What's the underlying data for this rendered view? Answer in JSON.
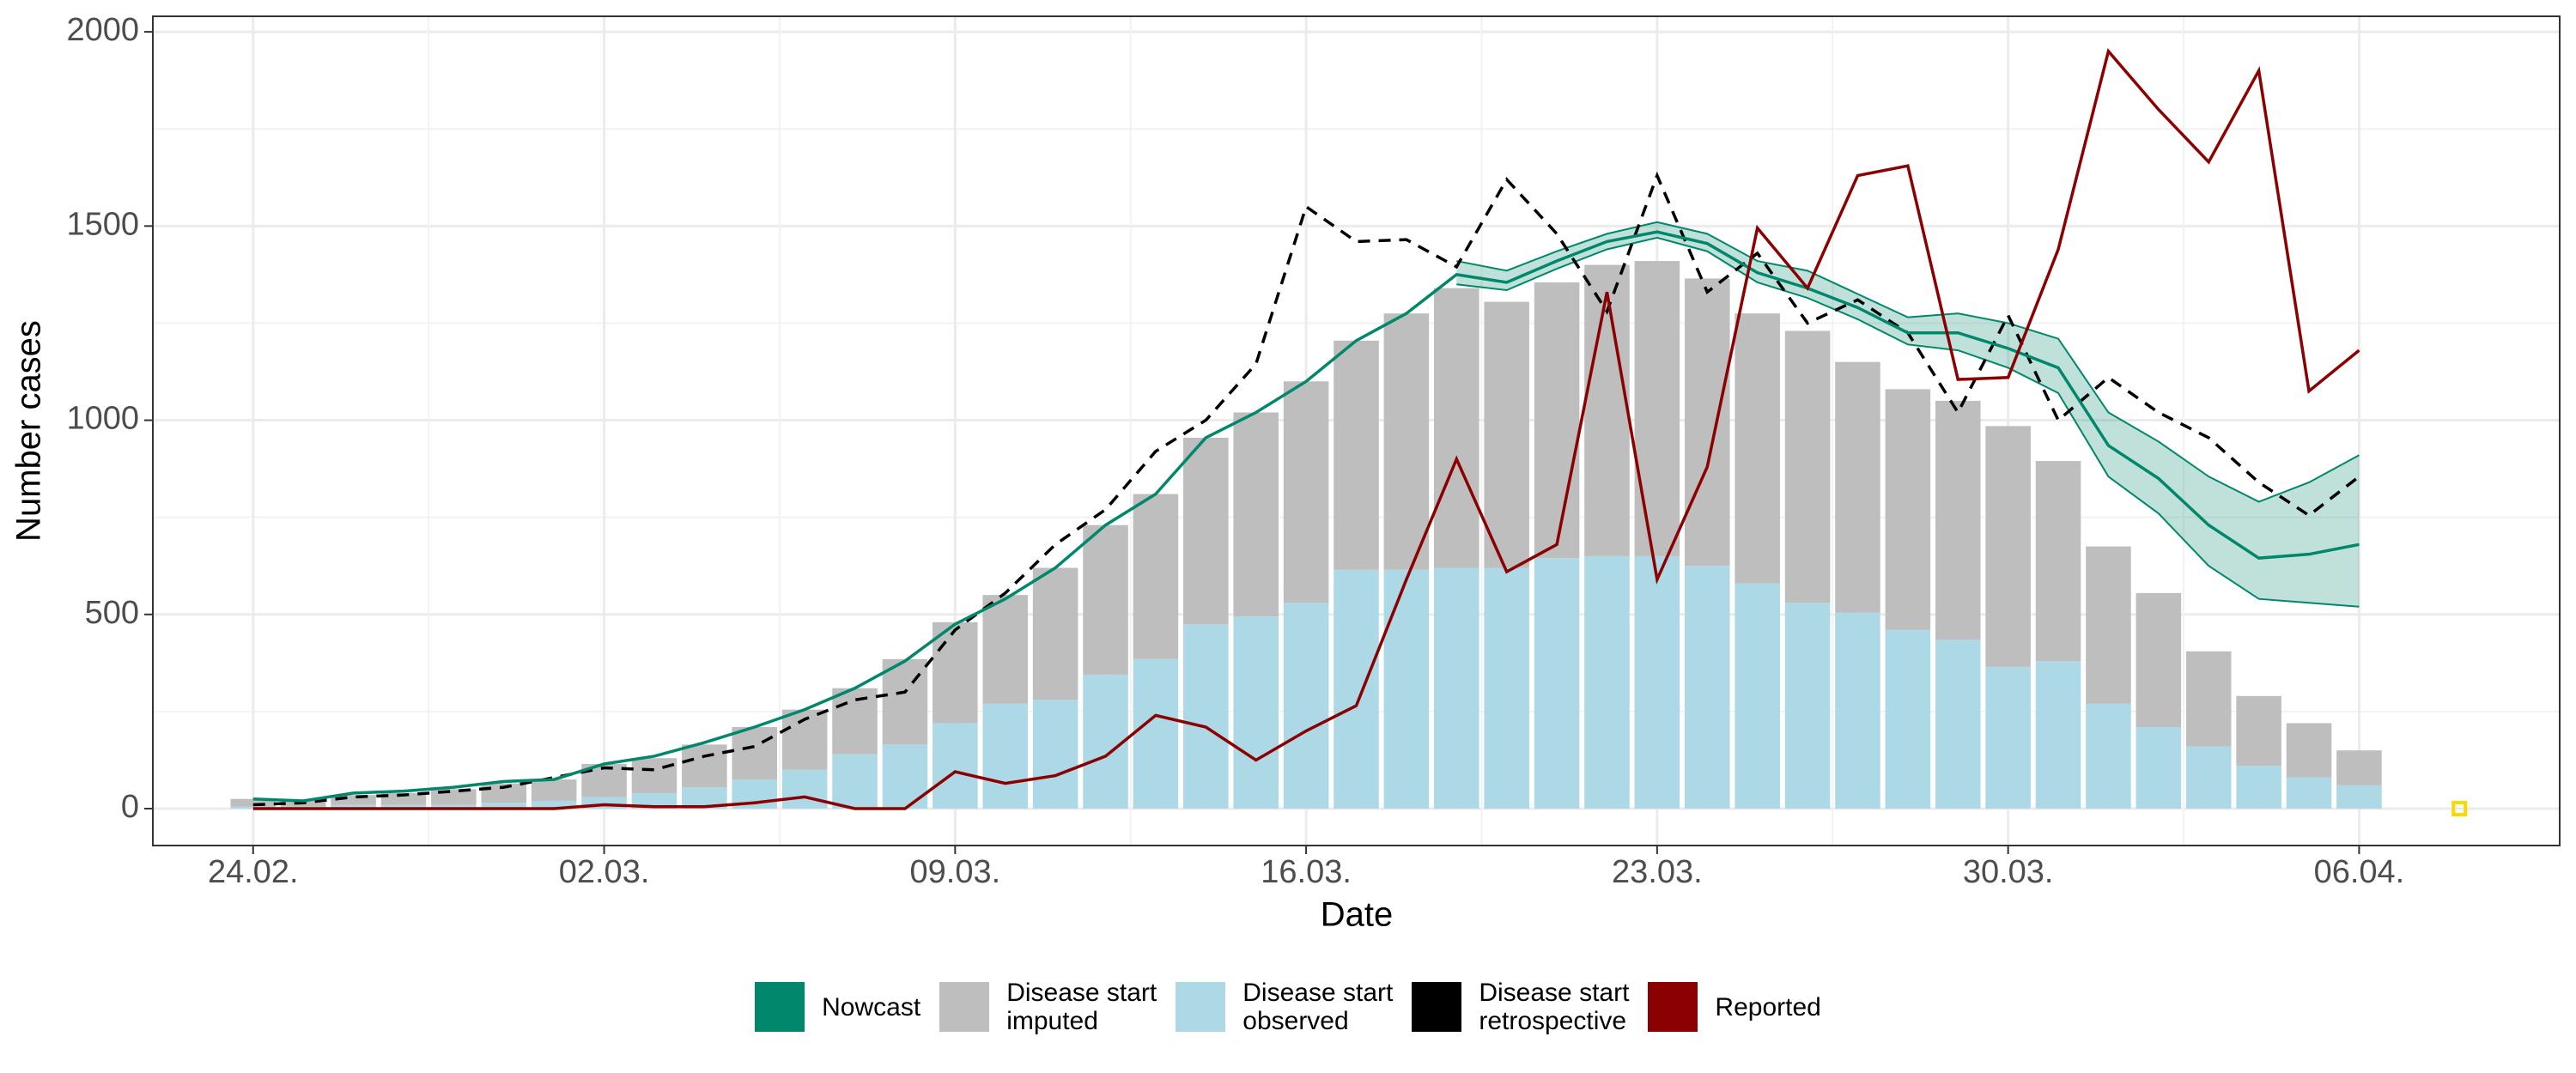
{
  "chart_data": {
    "type": "nowcast",
    "xlabel": "Date",
    "ylabel": "Number cases",
    "x": [
      "24.02.",
      "25.02.",
      "26.02.",
      "27.02.",
      "28.02.",
      "29.02.",
      "01.03.",
      "02.03.",
      "03.03.",
      "04.03.",
      "05.03.",
      "06.03.",
      "07.03.",
      "08.03.",
      "09.03.",
      "10.03.",
      "11.03.",
      "12.03.",
      "13.03.",
      "14.03.",
      "15.03.",
      "16.03.",
      "17.03.",
      "18.03.",
      "19.03.",
      "20.03.",
      "21.03.",
      "22.03.",
      "23.03.",
      "24.03.",
      "25.03.",
      "26.03.",
      "27.03.",
      "28.03.",
      "29.03.",
      "30.03.",
      "31.03.",
      "01.04.",
      "02.04.",
      "03.04.",
      "04.04.",
      "05.04.",
      "06.04."
    ],
    "xlim": [
      "22.02.",
      "10.04."
    ],
    "xticks": [
      "24.02.",
      "02.03.",
      "09.03.",
      "16.03.",
      "23.03.",
      "30.03.",
      "06.04."
    ],
    "ylim": [
      -95,
      2040
    ],
    "yticks": [
      0,
      500,
      1000,
      1500,
      2000
    ],
    "grid": true,
    "legend": "bottom",
    "series": [
      {
        "name": "Nowcast",
        "color": "#00876c",
        "kind": "line-band",
        "values": [
          25,
          20,
          40,
          45,
          55,
          70,
          75,
          115,
          135,
          170,
          210,
          255,
          310,
          380,
          475,
          540,
          620,
          730,
          810,
          955,
          1020,
          1100,
          1205,
          1275,
          1375,
          1355,
          1410,
          1460,
          1485,
          1455,
          1380,
          1340,
          1290,
          1225,
          1225,
          1185,
          1135,
          935,
          850,
          730,
          645,
          655,
          680
        ],
        "lower": [
          null,
          null,
          null,
          null,
          null,
          null,
          null,
          null,
          null,
          null,
          null,
          null,
          null,
          null,
          null,
          null,
          null,
          null,
          null,
          null,
          null,
          null,
          null,
          null,
          1350,
          1335,
          1390,
          1440,
          1470,
          1435,
          1355,
          1315,
          1260,
          1195,
          1180,
          1135,
          1070,
          855,
          760,
          625,
          540,
          530,
          520
        ],
        "upper": [
          null,
          null,
          null,
          null,
          null,
          null,
          null,
          null,
          null,
          null,
          null,
          null,
          null,
          null,
          null,
          null,
          null,
          null,
          null,
          null,
          null,
          null,
          null,
          null,
          1410,
          1385,
          1435,
          1480,
          1510,
          1480,
          1410,
          1385,
          1325,
          1265,
          1275,
          1250,
          1210,
          1020,
          945,
          855,
          790,
          840,
          910
        ]
      },
      {
        "name": "Disease start\nimputed",
        "color": "#bebebe",
        "kind": "bar-top",
        "values": [
          20,
          15,
          25,
          30,
          40,
          50,
          55,
          85,
          90,
          110,
          135,
          155,
          170,
          220,
          260,
          280,
          340,
          385,
          425,
          480,
          525,
          570,
          590,
          660,
          720,
          685,
          710,
          750,
          760,
          740,
          695,
          700,
          645,
          620,
          615,
          620,
          515,
          405,
          345,
          245,
          180,
          140,
          90
        ]
      },
      {
        "name": "Disease start\nobserved",
        "color": "#add8e6",
        "kind": "bar-bottom",
        "values": [
          5,
          5,
          10,
          10,
          10,
          15,
          20,
          30,
          40,
          55,
          75,
          100,
          140,
          165,
          220,
          270,
          280,
          345,
          385,
          475,
          495,
          530,
          615,
          615,
          620,
          620,
          645,
          650,
          650,
          625,
          580,
          530,
          505,
          460,
          435,
          365,
          380,
          270,
          210,
          160,
          110,
          80,
          60
        ]
      },
      {
        "name": "Disease start\nretrospective",
        "color": "#000000",
        "kind": "dashed",
        "values": [
          10,
          15,
          30,
          35,
          45,
          55,
          80,
          105,
          100,
          135,
          160,
          230,
          280,
          300,
          460,
          555,
          680,
          770,
          920,
          1000,
          1145,
          1550,
          1460,
          1465,
          1395,
          1620,
          1480,
          1280,
          1630,
          1330,
          1430,
          1250,
          1310,
          1225,
          1020,
          1270,
          1000,
          1110,
          1020,
          955,
          840,
          755,
          855
        ]
      },
      {
        "name": "Reported",
        "color": "#8b0000",
        "kind": "line",
        "values": [
          0,
          0,
          0,
          0,
          0,
          0,
          0,
          10,
          5,
          5,
          15,
          30,
          0,
          0,
          95,
          65,
          85,
          135,
          240,
          210,
          125,
          200,
          265,
          590,
          900,
          610,
          680,
          1330,
          590,
          880,
          1495,
          1340,
          1630,
          1655,
          1105,
          1110,
          1440,
          1950,
          1800,
          1665,
          1900,
          1075,
          1180
        ]
      }
    ],
    "marker": {
      "x": "08.04.",
      "value": 0,
      "color": "#ffd700"
    }
  }
}
